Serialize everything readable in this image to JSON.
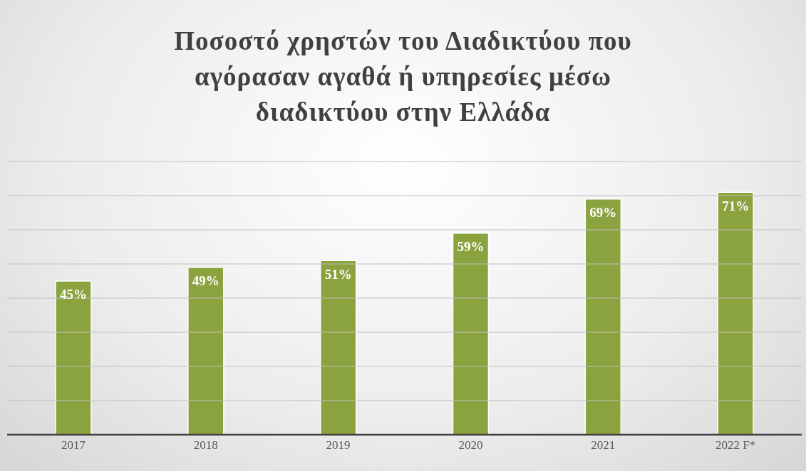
{
  "chart_data": {
    "type": "bar",
    "title": "Ποσοστό χρηστών του Διαδικτύου που αγόρασαν αγαθά ή υπηρεσίες μέσω διαδικτύου στην Ελλάδα",
    "categories": [
      "2017",
      "2018",
      "2019",
      "2020",
      "2021",
      "2022 F*"
    ],
    "values": [
      45,
      49,
      51,
      59,
      69,
      71
    ],
    "value_labels": [
      "45%",
      "49%",
      "51%",
      "59%",
      "69%",
      "71%"
    ],
    "color": "#8aa33f",
    "ylim": [
      0,
      80
    ],
    "yticks": [
      {
        "value": 0,
        "label": null
      },
      {
        "value": 10,
        "label": null
      },
      {
        "value": 20,
        "label": null
      },
      {
        "value": 30,
        "label": null
      },
      {
        "value": 40,
        "label": null
      },
      {
        "value": 50,
        "label": null
      },
      {
        "value": 60,
        "label": null
      },
      {
        "value": 70,
        "label": null
      },
      {
        "value": 80,
        "label": null
      }
    ],
    "grid": "y",
    "tick_labels": "x"
  }
}
